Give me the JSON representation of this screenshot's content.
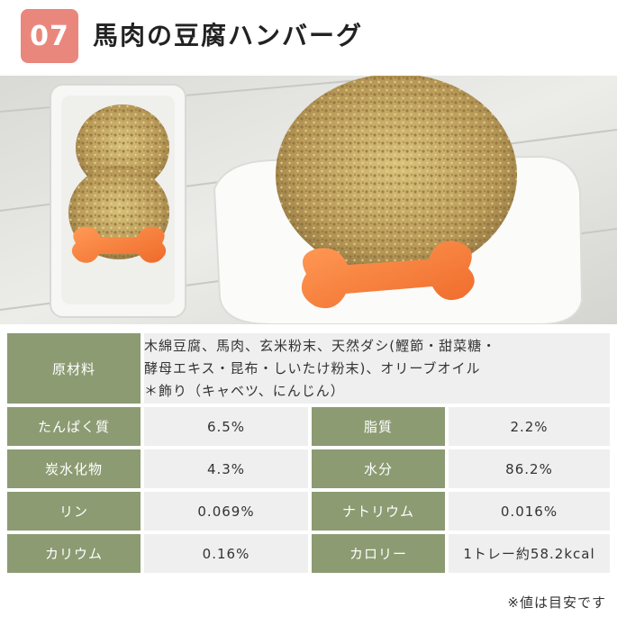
{
  "colors": {
    "badge": "#ea877d",
    "label_bg": "#8c9b72",
    "value_bg": "#efefef"
  },
  "header": {
    "number": "07",
    "title": "馬肉の豆腐ハンバーグ"
  },
  "photo": {
    "description_icon": "food-photo-icon"
  },
  "ingredients": {
    "label": "原材料",
    "lines": [
      "木綿豆腐、馬肉、玄米粉末、天然ダシ(鰹節・甜菜糖・",
      "酵母エキス・昆布・しいたけ粉末)、オリーブオイル",
      "＊飾り（キャベツ、にんじん）"
    ]
  },
  "nutrition": [
    [
      {
        "label": "たんぱく質",
        "value": "6.5%"
      },
      {
        "label": "脂質",
        "value": "2.2%"
      }
    ],
    [
      {
        "label": "炭水化物",
        "value": "4.3%"
      },
      {
        "label": "水分",
        "value": "86.2%"
      }
    ],
    [
      {
        "label": "リン",
        "value": "0.069%"
      },
      {
        "label": "ナトリウム",
        "value": "0.016%"
      }
    ],
    [
      {
        "label": "カリウム",
        "value": "0.16%"
      },
      {
        "label": "カロリー",
        "value": "1トレー約58.2kcal"
      }
    ]
  ],
  "note": "※値は目安です"
}
